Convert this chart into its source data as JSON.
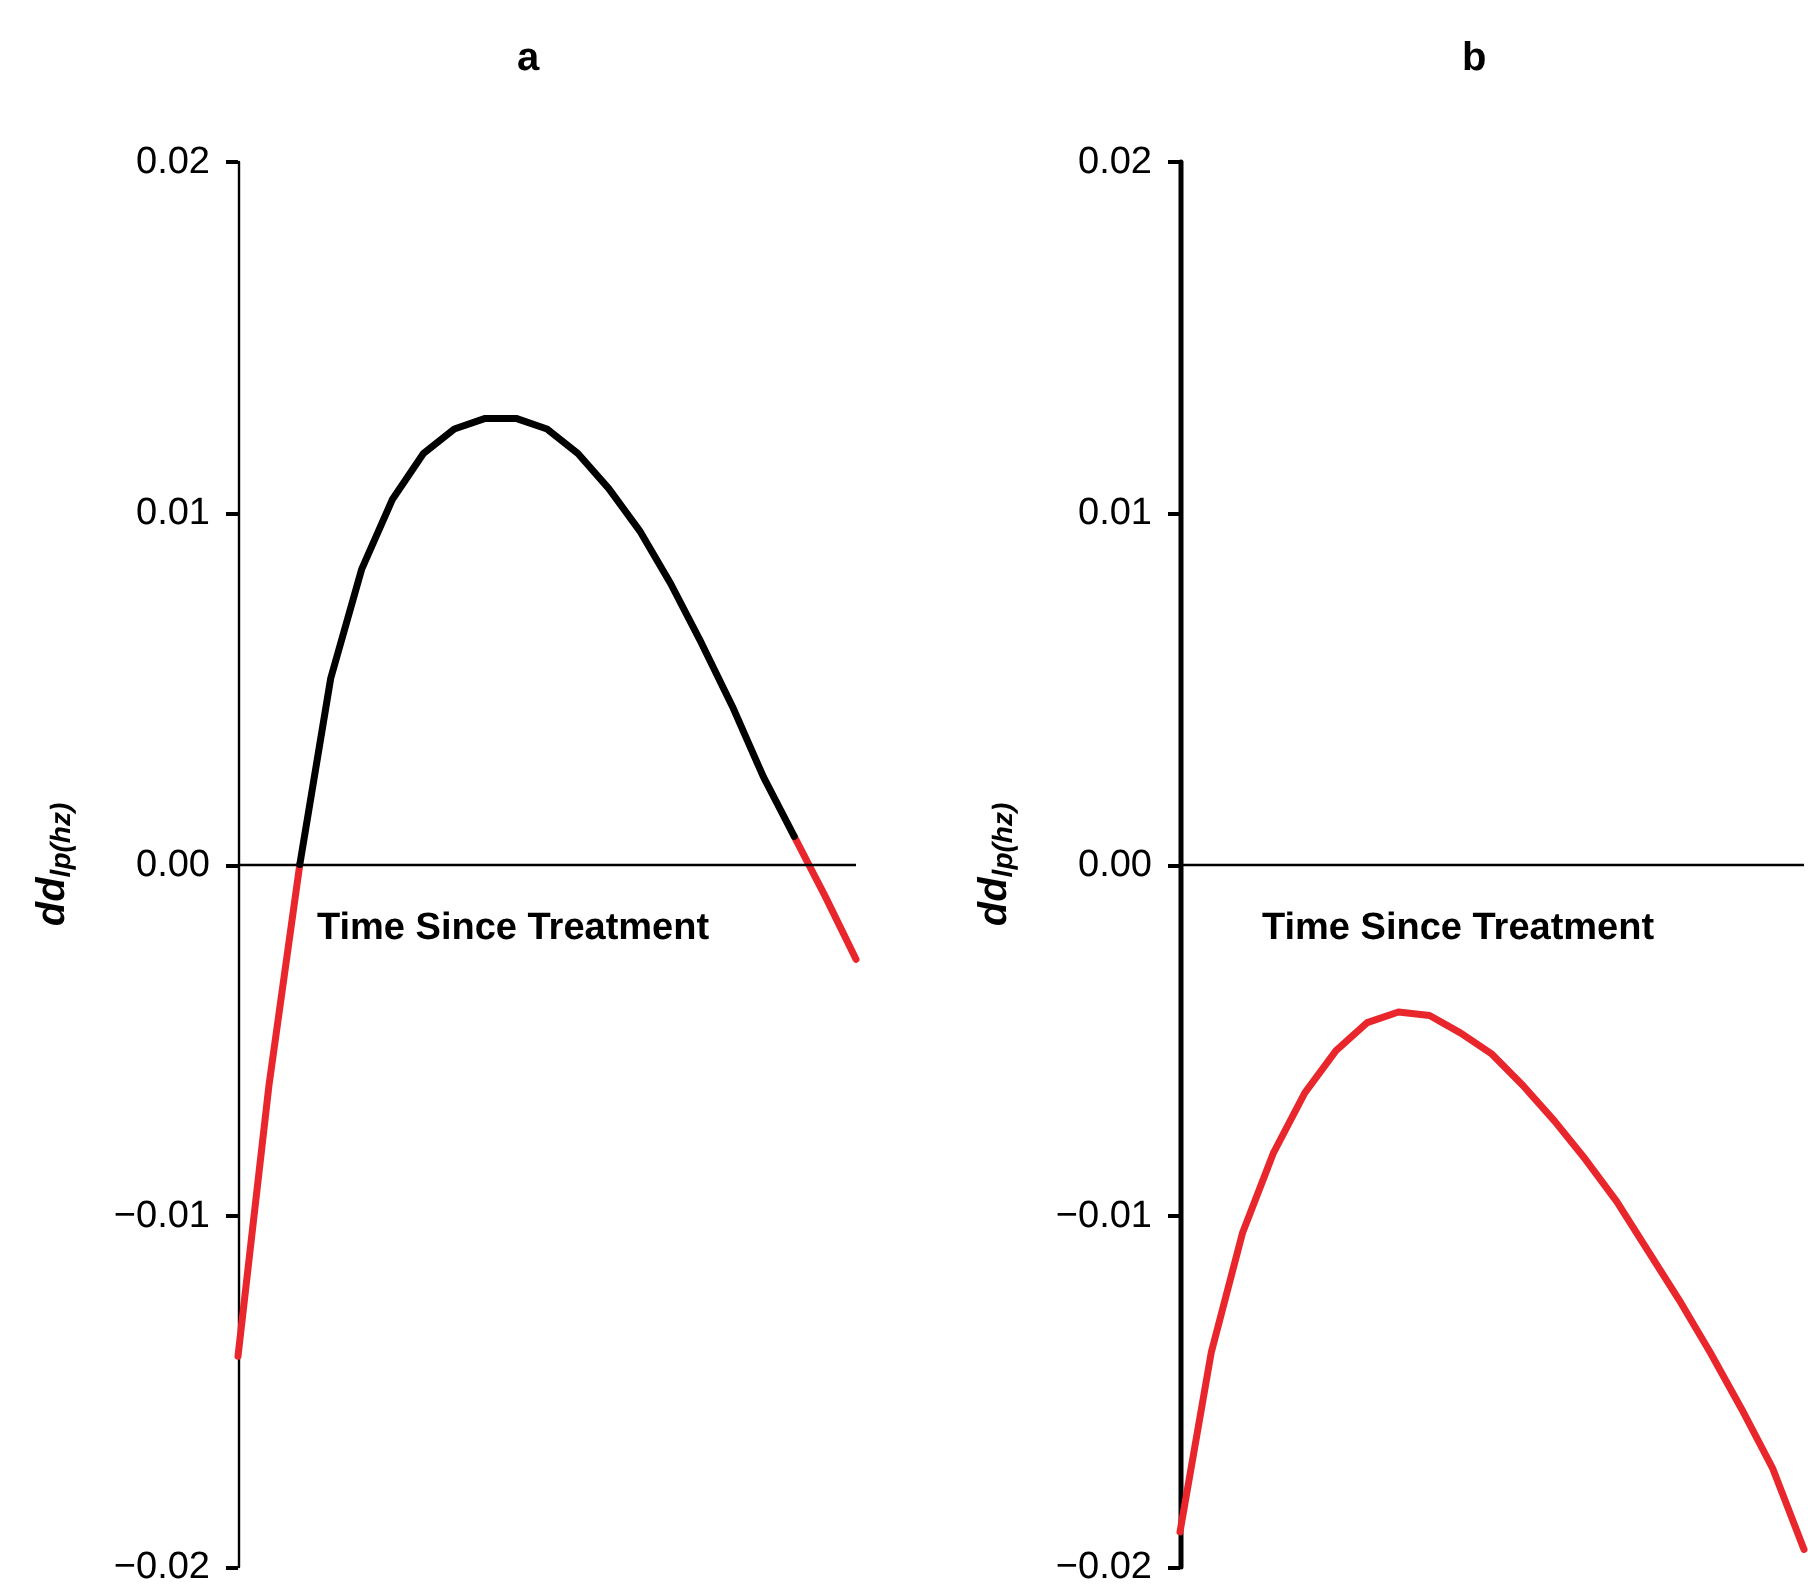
{
  "chart_data": [
    {
      "type": "line",
      "title": "a",
      "xlabel": "Time Since Treatment",
      "ylabel": "dd$_{lp(hz)}$",
      "categories": [
        null,
        null,
        null,
        null,
        null,
        null,
        null,
        null,
        null,
        null,
        null,
        null,
        null,
        null,
        null,
        null,
        null,
        null,
        null,
        null,
        null
      ],
      "ylim": [
        -0.02,
        0.02
      ],
      "yticks": [
        {
          "value": -0.02,
          "label": "−0.02"
        },
        {
          "value": -0.01,
          "label": "−0.01"
        },
        {
          "value": 0,
          "label": "0.00"
        },
        {
          "value": 0.01,
          "label": "0.01"
        },
        {
          "value": 0.02,
          "label": "0.02"
        }
      ],
      "tick_labels": "y",
      "grid": false,
      "ref_lines": [
        {
          "axis": "y",
          "value": 0,
          "color": "#000000"
        }
      ],
      "series": [
        {
          "color": "#e8262b",
          "values": [
            -0.014,
            -0.0063,
            0.0,
            null,
            null,
            null,
            null,
            null,
            null,
            null,
            null,
            null,
            null,
            null,
            null,
            null,
            null,
            null,
            null,
            null,
            null
          ]
        },
        {
          "color": "#e8262b",
          "values": [
            null,
            null,
            null,
            null,
            null,
            null,
            null,
            null,
            null,
            null,
            null,
            null,
            null,
            null,
            null,
            null,
            null,
            null,
            0.0008,
            -0.0009,
            -0.0027
          ]
        },
        {
          "color": "#000000",
          "values": [
            null,
            null,
            0.0,
            0.0053,
            0.0084,
            0.0104,
            0.0117,
            0.0124,
            0.0127,
            0.0127,
            0.0124,
            0.0117,
            0.0107,
            0.0095,
            0.008,
            0.0063,
            0.0045,
            0.0025,
            0.0008,
            null,
            null
          ]
        }
      ]
    },
    {
      "type": "line",
      "title": "b",
      "xlabel": "Time Since Treatment",
      "ylabel": "dd$_{lp(hz)}$",
      "categories": [
        null,
        null,
        null,
        null,
        null,
        null,
        null,
        null,
        null,
        null,
        null,
        null,
        null,
        null,
        null,
        null,
        null,
        null,
        null,
        null,
        null
      ],
      "ylim": [
        -0.02,
        0.02
      ],
      "yticks": [
        {
          "value": -0.02,
          "label": "−0.02"
        },
        {
          "value": -0.01,
          "label": "−0.01"
        },
        {
          "value": 0,
          "label": "0.00"
        },
        {
          "value": 0.01,
          "label": "0.01"
        },
        {
          "value": 0.02,
          "label": "0.02"
        }
      ],
      "tick_labels": "y",
      "grid": false,
      "ref_lines": [
        {
          "axis": "y",
          "value": 0,
          "color": "#000000"
        }
      ],
      "series": [
        {
          "color": "#e8262b",
          "values": [
            -0.019,
            -0.0139,
            -0.0105,
            -0.0082,
            -0.0065,
            -0.0053,
            -0.0045,
            -0.0042,
            -0.0043,
            -0.0048,
            -0.0054,
            -0.0063,
            -0.0073,
            -0.0084,
            -0.0096,
            -0.011,
            -0.0124,
            -0.0139,
            -0.0155,
            -0.0172,
            -0.0195
          ]
        }
      ]
    }
  ]
}
